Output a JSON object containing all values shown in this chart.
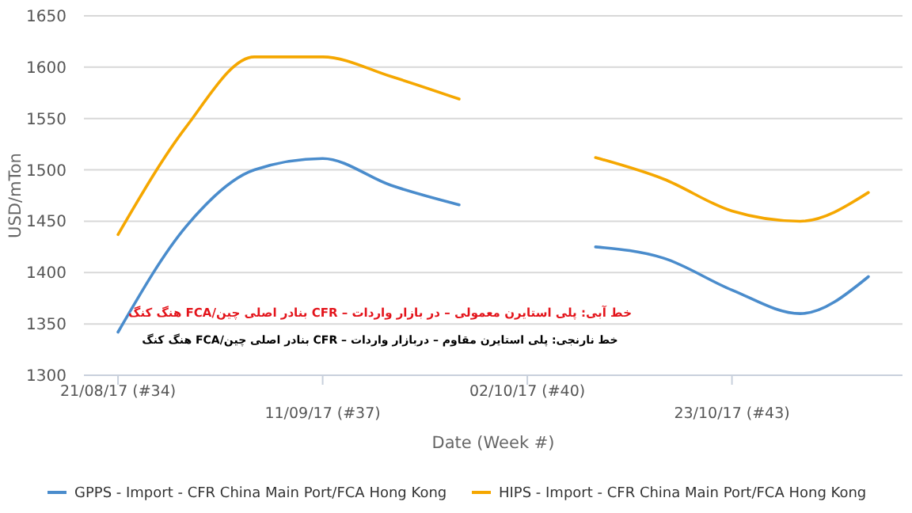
{
  "chart_data": {
    "type": "line",
    "xlabel": "Date (Week #)",
    "ylabel": "USD/mTon",
    "categories": [
      "21/08/17 (#34)",
      null,
      null,
      "11/09/17 (#37)",
      null,
      null,
      "02/10/17 (#40)",
      null,
      null,
      "23/10/17 (#43)",
      null,
      null
    ],
    "series": [
      {
        "name": "GPPS - Import - CFR China Main Port/FCA Hong Kong",
        "color": "#4a8ccc",
        "values": [
          1342,
          1445,
          1500,
          1511,
          1485,
          1466,
          null,
          1425,
          1414,
          1383,
          1360,
          1396
        ]
      },
      {
        "name": "HIPS - Import - CFR China Main Port/FCA Hong Kong",
        "color": "#f5a700",
        "values": [
          1437,
          1542,
          1610,
          1610,
          1591,
          1569,
          null,
          1512,
          1491,
          1460,
          1450,
          1478
        ]
      }
    ],
    "ylim": [
      1300,
      1650
    ],
    "yticks": [
      1300,
      1350,
      1400,
      1450,
      1500,
      1550,
      1600,
      1650
    ],
    "grid": "y",
    "legend": "bottom",
    "marker": "none",
    "line_style": "solid",
    "annotations": [
      "خط آبی: پلی استایرن معمولی – در بازار واردات – CFR بنادر اصلی چین/FCA هنگ کنگ",
      "خط نارنجی: پلی استایرن مقاوم – دربازار واردات – CFR بنادر اصلی چین/FCA هنگ کنگ"
    ]
  }
}
